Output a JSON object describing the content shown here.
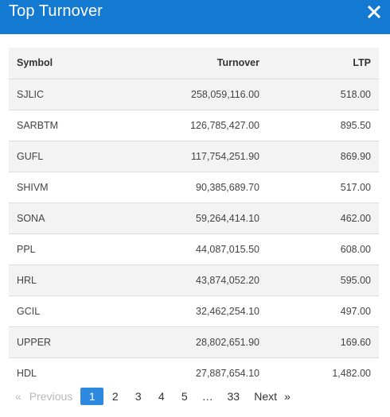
{
  "header": {
    "title": "Top Turnover"
  },
  "table": {
    "columns": [
      "Symbol",
      "Turnover",
      "LTP"
    ],
    "rows": [
      [
        "SJLIC",
        "258,059,116.00",
        "518.00"
      ],
      [
        "SARBTM",
        "126,785,427.00",
        "895.50"
      ],
      [
        "GUFL",
        "117,754,251.90",
        "869.90"
      ],
      [
        "SHIVM",
        "90,385,689.70",
        "517.00"
      ],
      [
        "SONA",
        "59,264,414.10",
        "462.00"
      ],
      [
        "PPL",
        "44,087,015.50",
        "608.00"
      ],
      [
        "HRL",
        "43,874,052.20",
        "595.00"
      ],
      [
        "GCIL",
        "32,462,254.10",
        "497.00"
      ],
      [
        "UPPER",
        "28,802,651.90",
        "169.60"
      ],
      [
        "HDL",
        "27,887,654.10",
        "1,482.00"
      ]
    ]
  },
  "pagination": {
    "prev_arrow": "«",
    "prev_label": "Previous",
    "pages": [
      "1",
      "2",
      "3",
      "4",
      "5"
    ],
    "current_page": "1",
    "ellipsis": "…",
    "last_page": "33",
    "next_label": "Next",
    "next_arrow": "»"
  },
  "colors": {
    "header_bg": "#1479d1",
    "active_page_bg": "#2e8ae0",
    "stripe_bg": "#f3f3f3"
  },
  "icons": {
    "close": "close-icon"
  }
}
